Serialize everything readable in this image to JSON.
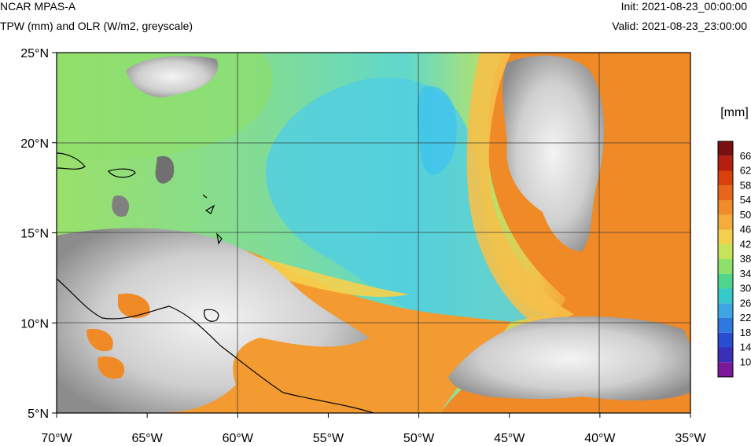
{
  "header": {
    "model": "NCAR MPAS-A",
    "fields": "TPW (mm) and OLR (W/m2, greyscale)",
    "init": "Init: 2021-08-23_00:00:00",
    "valid": "Valid: 2021-08-23_23:00:00"
  },
  "axes": {
    "lon_labels": [
      "70°W",
      "65°W",
      "60°W",
      "55°W",
      "50°W",
      "45°W",
      "40°W",
      "35°W"
    ],
    "lat_labels": [
      "25°N",
      "20°N",
      "15°N",
      "10°N",
      "5°N"
    ],
    "lon_range": [
      -70,
      -35
    ],
    "lat_range": [
      5,
      25
    ]
  },
  "colorbar": {
    "unit": "[mm]",
    "levels": [
      "66",
      "62",
      "58",
      "54",
      "50",
      "46",
      "42",
      "38",
      "34",
      "30",
      "26",
      "22",
      "18",
      "14",
      "10"
    ],
    "colors": [
      "#7a0f0f",
      "#b51f12",
      "#d8400c",
      "#e8661a",
      "#f08c2a",
      "#f4ac3c",
      "#f2d04e",
      "#c7e35a",
      "#8fe06a",
      "#4fd68c",
      "#37c8c8",
      "#3fa6e6",
      "#2f78e0",
      "#2a4cd0",
      "#3a30b8",
      "#7a1a9a"
    ]
  },
  "map": {
    "background_tpw_colors": {
      "moist_orange": "#f28a24",
      "warm_yellow": "#f3c744",
      "green": "#86dd70",
      "cyan": "#5fd8c8",
      "light_blue": "#52c8e8"
    },
    "cloud_color": "#d8d8d8",
    "coastline_color": "#000000"
  }
}
